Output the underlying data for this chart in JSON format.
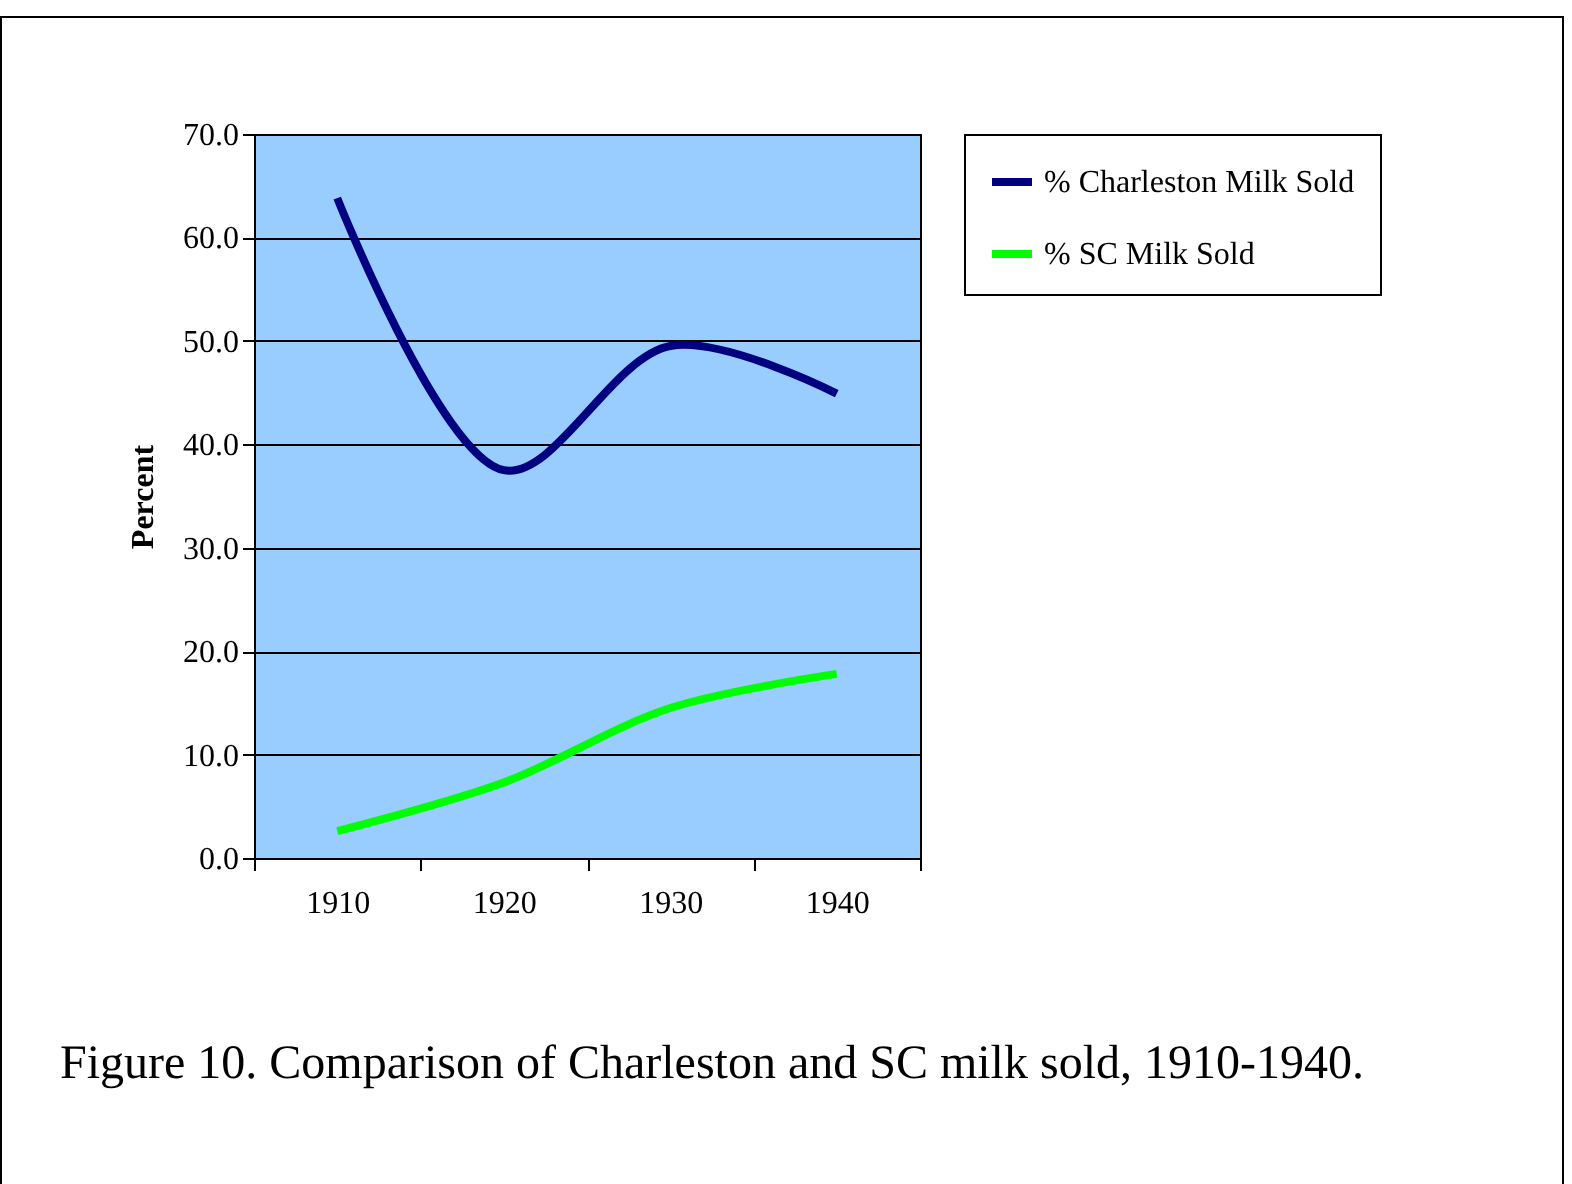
{
  "chart_data": {
    "type": "line",
    "ylabel": "Percent",
    "categories": [
      "1910",
      "1920",
      "1930",
      "1940"
    ],
    "series": [
      {
        "name": "% Charleston Milk Sold",
        "color": "#000080",
        "values": [
          63.8,
          37.5,
          49.5,
          44.9
        ]
      },
      {
        "name": "% SC Milk Sold",
        "color": "#00ff00",
        "values": [
          2.6,
          7.3,
          14.5,
          17.8
        ]
      }
    ],
    "ylim": [
      0,
      70
    ],
    "yticks": [
      {
        "value": 0,
        "label": "0.0"
      },
      {
        "value": 10,
        "label": "10.0"
      },
      {
        "value": 20,
        "label": "20.0"
      },
      {
        "value": 30,
        "label": "30.0"
      },
      {
        "value": 40,
        "label": "40.0"
      },
      {
        "value": 50,
        "label": "50.0"
      },
      {
        "value": 60,
        "label": "60.0"
      },
      {
        "value": 70,
        "label": "70.0"
      }
    ],
    "grid": "y",
    "legend": "right",
    "marker": "none",
    "line_style": "solid",
    "annotations": [
      "Figure 10. Comparison of Charleston and SC milk sold, 1910-1940."
    ]
  }
}
